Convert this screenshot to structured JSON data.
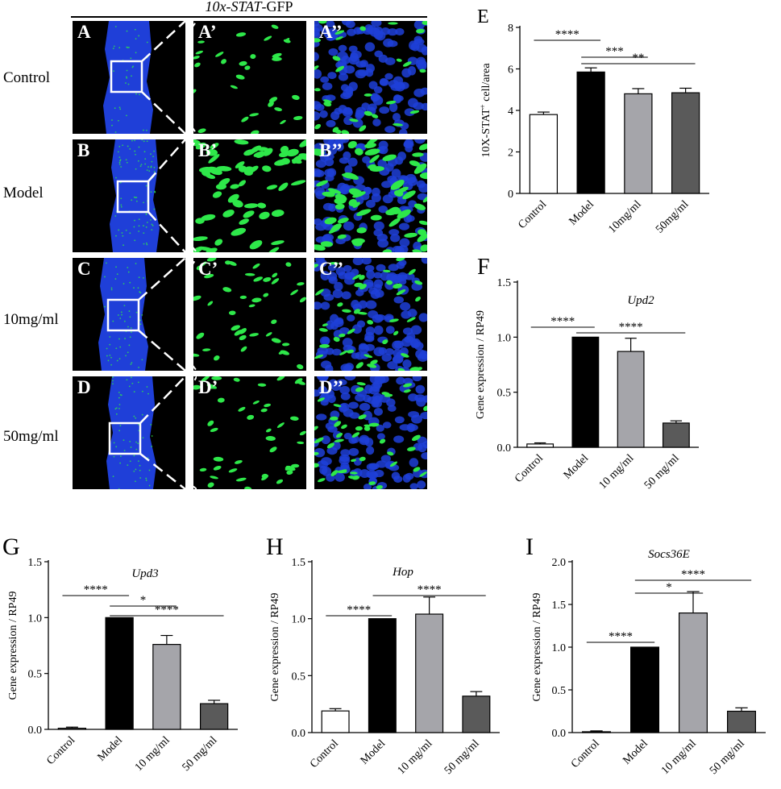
{
  "figure_title": "10x-STAT-GFP",
  "figure_title_parts": {
    "italic": "10x-STAT",
    "rest": "-GFP"
  },
  "colors": {
    "gfp": "#2ee84a",
    "dapi": "#1f3fd8",
    "background": "#000000",
    "model_bar": "#000000",
    "mg10_bar": "#a5a5aa",
    "mg50_bar": "#5a5a5a"
  },
  "rows": [
    {
      "label": "Control",
      "letters": [
        "A",
        "A’",
        "A’’"
      ],
      "density": 0.25
    },
    {
      "label": "Model",
      "letters": [
        "B",
        "B’",
        "B’’"
      ],
      "density": 1.0
    },
    {
      "label": "10mg/ml",
      "letters": [
        "C",
        "C’",
        "C’’"
      ],
      "density": 0.55
    },
    {
      "label": "50mg/ml",
      "letters": [
        "D",
        "D’",
        "D’’"
      ],
      "density": 0.6
    }
  ],
  "chart_data": [
    {
      "panel": "E",
      "type": "bar",
      "title": "",
      "xlabel": "",
      "ylabel": "10X-STAT+ cell/area",
      "ylabel_parts": {
        "main": "10X-STAT",
        "sup": "+",
        "tail": " cell/area"
      },
      "ylim": [
        0,
        8
      ],
      "yticks": [
        "0",
        "2",
        "4",
        "6",
        "8"
      ],
      "ytick_values": [
        0,
        2,
        4,
        6,
        8
      ],
      "categories": [
        "Control",
        "Model",
        "10mg/ml",
        "50mg/ml"
      ],
      "values": [
        3.8,
        5.85,
        4.8,
        4.85
      ],
      "errors": [
        0.12,
        0.2,
        0.25,
        0.22
      ],
      "significance": [
        {
          "from": 0,
          "to": 1,
          "label": "****"
        },
        {
          "from": 1,
          "to": 2,
          "label": "***"
        },
        {
          "from": 1,
          "to": 3,
          "label": "**"
        }
      ]
    },
    {
      "panel": "F",
      "type": "bar",
      "title": "Upd2",
      "xlabel": "",
      "ylabel": "Gene expression / RP49",
      "ylim": [
        0,
        1.5
      ],
      "yticks": [
        "0.0",
        "0.5",
        "1.0",
        "1.5"
      ],
      "ytick_values": [
        0,
        0.5,
        1.0,
        1.5
      ],
      "categories": [
        "Control",
        "Model",
        "10 mg/ml",
        "50 mg/ml"
      ],
      "values": [
        0.03,
        1.0,
        0.87,
        0.22
      ],
      "errors": [
        0.01,
        0.0,
        0.12,
        0.02
      ],
      "significance": [
        {
          "from": 0,
          "to": 1,
          "label": "****"
        },
        {
          "from": 1,
          "to": 3,
          "label": "****"
        }
      ]
    },
    {
      "panel": "G",
      "type": "bar",
      "title": "Upd3",
      "xlabel": "",
      "ylabel": "Gene expression / RP49",
      "ylim": [
        0,
        1.5
      ],
      "yticks": [
        "0.0",
        "0.5",
        "1.0",
        "1.5"
      ],
      "ytick_values": [
        0,
        0.5,
        1.0,
        1.5
      ],
      "categories": [
        "Control",
        "Model",
        "10 mg/ml",
        "50 mg/ml"
      ],
      "values": [
        0.01,
        1.0,
        0.76,
        0.23
      ],
      "errors": [
        0.01,
        0.0,
        0.08,
        0.03
      ],
      "significance": [
        {
          "from": 0,
          "to": 1,
          "label": "****"
        },
        {
          "from": 1,
          "to": 2,
          "label": "*"
        },
        {
          "from": 1,
          "to": 3,
          "label": "****"
        }
      ]
    },
    {
      "panel": "H",
      "type": "bar",
      "title": "Hop",
      "xlabel": "",
      "ylabel": "Gene expression / RP49",
      "ylim": [
        0,
        1.5
      ],
      "yticks": [
        "0.0",
        "0.5",
        "1.0",
        "1.5"
      ],
      "ytick_values": [
        0,
        0.5,
        1.0,
        1.5
      ],
      "categories": [
        "Control",
        "Model",
        "10 mg/ml",
        "50 mg/ml"
      ],
      "values": [
        0.19,
        1.0,
        1.04,
        0.32
      ],
      "errors": [
        0.02,
        0.0,
        0.15,
        0.04
      ],
      "significance": [
        {
          "from": 0,
          "to": 1,
          "label": "****"
        },
        {
          "from": 1,
          "to": 3,
          "label": "****"
        }
      ]
    },
    {
      "panel": "I",
      "type": "bar",
      "title": "Socs36E",
      "xlabel": "",
      "ylabel": "Gene expression / RP49",
      "ylim": [
        0,
        2.0
      ],
      "yticks": [
        "0.0",
        "0.5",
        "1.0",
        "1.5",
        "2.0"
      ],
      "ytick_values": [
        0,
        0.5,
        1.0,
        1.5,
        2.0
      ],
      "categories": [
        "Control",
        "Model",
        "10 mg/ml",
        "50 mg/ml"
      ],
      "values": [
        0.01,
        1.0,
        1.4,
        0.25
      ],
      "errors": [
        0.01,
        0.0,
        0.25,
        0.04
      ],
      "significance": [
        {
          "from": 0,
          "to": 1,
          "label": "****"
        },
        {
          "from": 1,
          "to": 2,
          "label": "*"
        },
        {
          "from": 1,
          "to": 3,
          "label": "****"
        }
      ]
    }
  ]
}
